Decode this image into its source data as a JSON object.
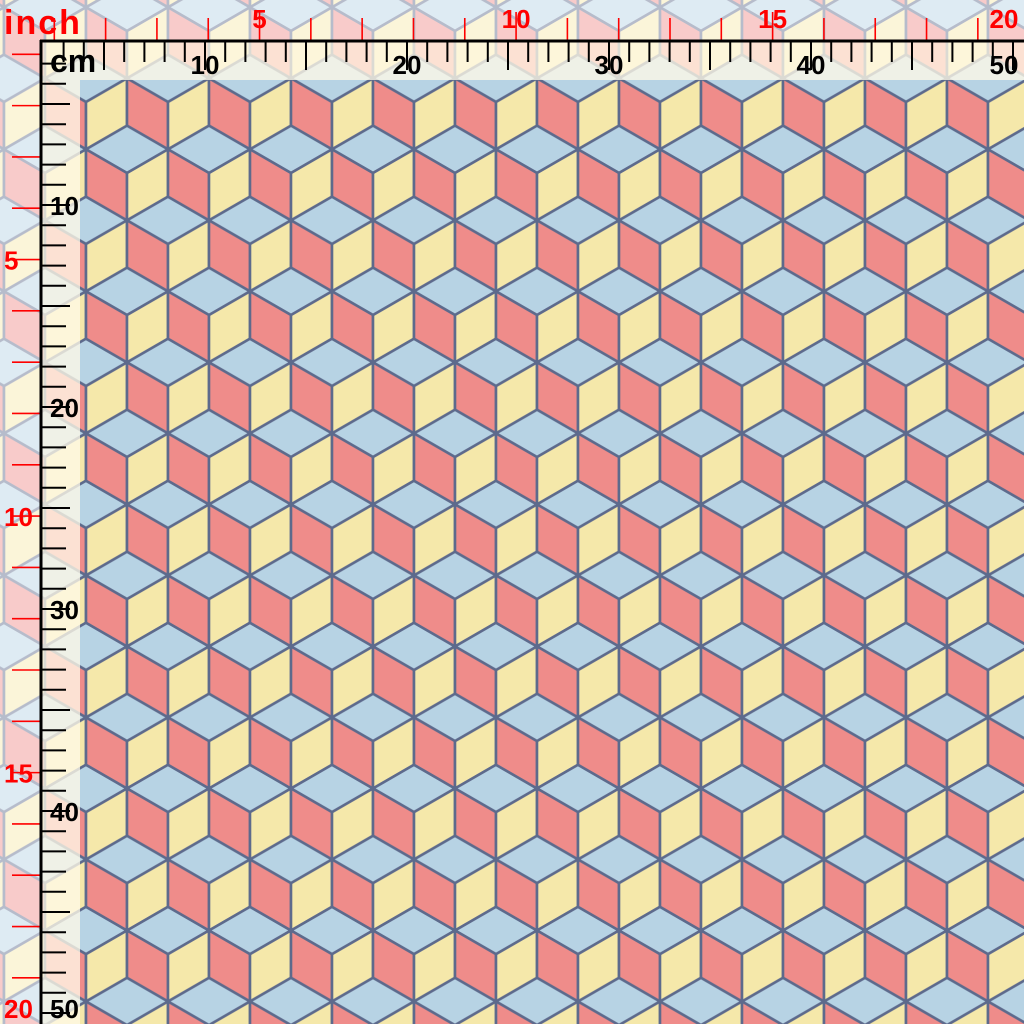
{
  "swatch": {
    "pattern": "isometric-cube-tumbling-blocks",
    "colors": {
      "top_face": "#b7d3e4",
      "left_face": "#ef8c8a",
      "right_face": "#f5e8aa",
      "outline": "#5d6a8c"
    }
  },
  "ruler_cm": {
    "unit_label": "cm",
    "color": "#000000",
    "top_labels": [
      "10",
      "20",
      "30",
      "40",
      "50"
    ],
    "left_labels": [
      "10",
      "20",
      "30",
      "40",
      "50"
    ]
  },
  "ruler_inch": {
    "unit_label": "inch",
    "color": "#ff0000",
    "top_labels": [
      "5",
      "10",
      "15",
      "20"
    ],
    "left_labels": [
      "5",
      "10",
      "15",
      "20"
    ]
  }
}
